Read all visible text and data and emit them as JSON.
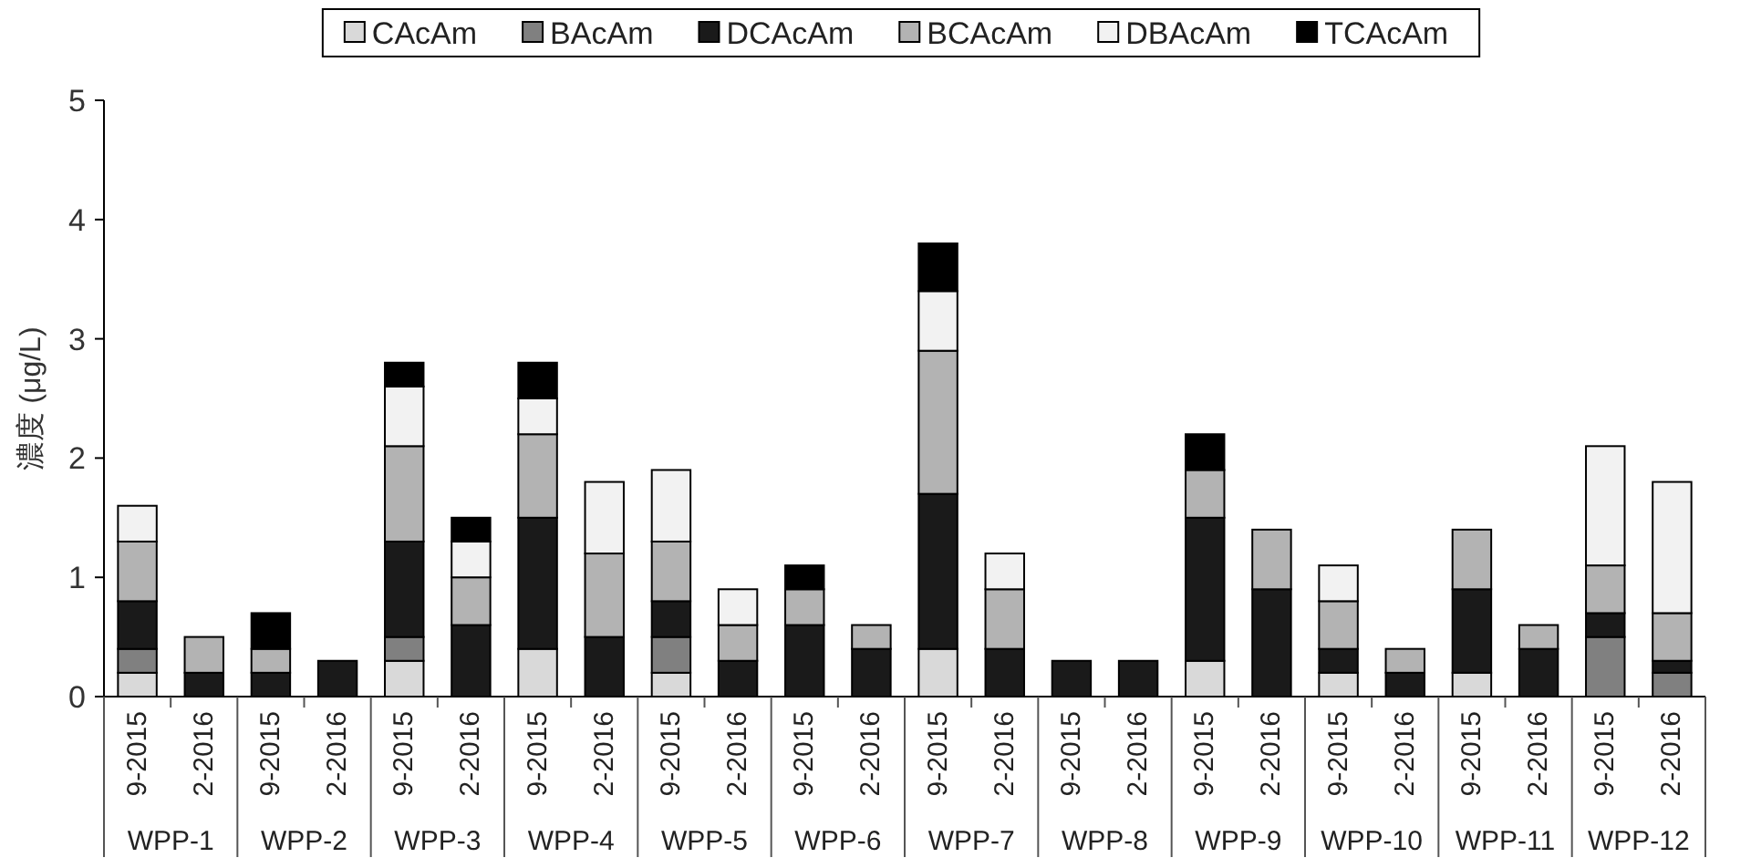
{
  "chart_data": {
    "type": "bar",
    "stacked": true,
    "ylabel": "濃度 (μg/L)",
    "categories": [
      "9-2015",
      "2-2016",
      "9-2015",
      "2-2016",
      "9-2015",
      "2-2016",
      "9-2015",
      "2-2016",
      "9-2015",
      "2-2016",
      "9-2015",
      "2-2016",
      "9-2015",
      "2-2016",
      "9-2015",
      "2-2016",
      "9-2015",
      "2-2016",
      "9-2015",
      "2-2016",
      "9-2015",
      "2-2016",
      "9-2015",
      "2-2016"
    ],
    "annotations": [
      "WPP-1",
      "WPP-2",
      "WPP-3",
      "WPP-4",
      "WPP-5",
      "WPP-6",
      "WPP-7",
      "WPP-8",
      "WPP-9",
      "WPP-10",
      "WPP-11",
      "WPP-12"
    ],
    "series": [
      {
        "name": "CAcAm",
        "color": "#d9d9d9",
        "values": [
          0.2,
          0,
          0,
          0,
          0.3,
          0,
          0.4,
          0,
          0.2,
          0,
          0,
          0,
          0.4,
          0,
          0,
          0,
          0.3,
          0,
          0.2,
          0,
          0.2,
          0,
          0,
          0
        ]
      },
      {
        "name": "BAcAm",
        "color": "#808080",
        "values": [
          0.2,
          0,
          0,
          0,
          0.2,
          0,
          0,
          0,
          0.3,
          0,
          0,
          0,
          0,
          0,
          0,
          0,
          0,
          0,
          0,
          0,
          0,
          0,
          0.5,
          0.2
        ]
      },
      {
        "name": "DCAcAm",
        "color": "#1a1a1a",
        "values": [
          0.4,
          0.2,
          0.2,
          0.3,
          0.8,
          0.6,
          1.1,
          0.5,
          0.3,
          0.3,
          0.6,
          0.4,
          1.3,
          0.4,
          0.3,
          0.3,
          1.2,
          0.9,
          0.2,
          0.2,
          0.7,
          0.4,
          0.2,
          0.1
        ]
      },
      {
        "name": "BCAcAm",
        "color": "#b3b3b3",
        "values": [
          0.5,
          0.3,
          0.2,
          0,
          0.8,
          0.4,
          0.7,
          0.7,
          0.5,
          0.3,
          0.3,
          0.2,
          1.2,
          0.5,
          0,
          0,
          0.4,
          0.5,
          0.4,
          0.2,
          0.5,
          0.2,
          0.4,
          0.4
        ]
      },
      {
        "name": "DBAcAm",
        "color": "#f2f2f2",
        "values": [
          0.3,
          0,
          0,
          0,
          0.5,
          0.3,
          0.3,
          0.6,
          0.6,
          0.3,
          0,
          0,
          0.5,
          0.3,
          0,
          0,
          0,
          0,
          0.3,
          0,
          0,
          0,
          1.0,
          1.1
        ]
      },
      {
        "name": "TCAcAm",
        "color": "#000000",
        "values": [
          0,
          0,
          0.3,
          0,
          0.2,
          0.2,
          0.3,
          0,
          0,
          0,
          0.2,
          0,
          0.4,
          0,
          0,
          0,
          0.3,
          0,
          0,
          0,
          0,
          0,
          0,
          0
        ]
      }
    ],
    "ylim": [
      0,
      5
    ],
    "yticks": [
      0,
      1,
      2,
      3,
      4,
      5
    ],
    "grid": false,
    "legend": "top"
  }
}
